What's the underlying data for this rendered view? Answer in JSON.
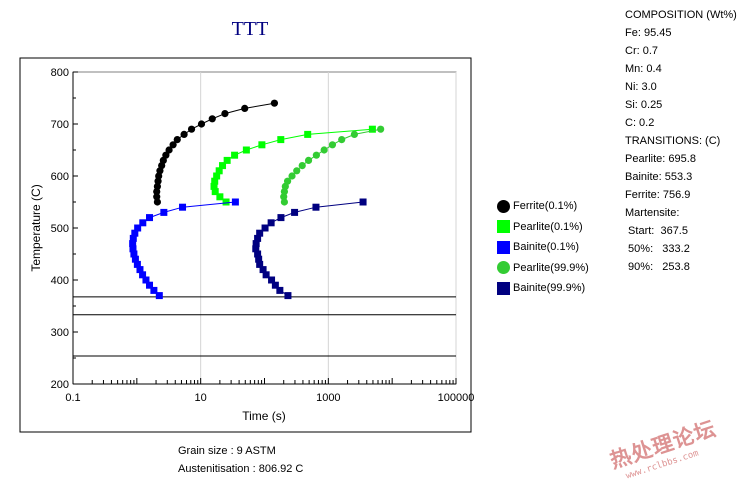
{
  "title": "TTT",
  "composition": {
    "header": "COMPOSITION (Wt%)",
    "items": [
      "Fe: 95.45",
      "Cr: 0.7",
      "Mn: 0.4",
      "Ni: 3.0",
      "Si: 0.25",
      "C: 0.2"
    ]
  },
  "transitions": {
    "header": "TRANSITIONS: (C)",
    "items": [
      "Pearlite: 695.8",
      "Bainite: 553.3",
      "Ferrite: 756.9"
    ],
    "martensite_header": "Martensite:",
    "martensite_items": [
      " Start:  367.5",
      " 50%:   333.2",
      " 90%:   253.8"
    ]
  },
  "grain_size": "Grain size : 9 ASTM",
  "austenitisation": "Austenitisation : 806.92 C",
  "watermark": {
    "cn": "热处理论坛",
    "url": "www.rclbbs.com"
  },
  "chart_data": {
    "type": "line",
    "xlabel": "Time (s)",
    "ylabel": "Temperature (C)",
    "x_scale": "log",
    "xlim": [
      0.1,
      100000
    ],
    "ylim": [
      200,
      800
    ],
    "x_ticks": [
      "0.1",
      "10",
      "1000",
      "100000"
    ],
    "y_ticks": [
      "200",
      "300",
      "400",
      "500",
      "600",
      "700",
      "800"
    ],
    "grid": true,
    "legend_position": "right",
    "martensite_lines": [
      367.5,
      333.2,
      253.8
    ],
    "series": [
      {
        "name": "Ferrite(0.1%)",
        "color": "#000000",
        "marker": "circle",
        "points": [
          [
            2.1,
            550
          ],
          [
            2.05,
            560
          ],
          [
            2.05,
            570
          ],
          [
            2.1,
            580
          ],
          [
            2.15,
            590
          ],
          [
            2.2,
            600
          ],
          [
            2.3,
            610
          ],
          [
            2.45,
            620
          ],
          [
            2.6,
            630
          ],
          [
            2.85,
            640
          ],
          [
            3.2,
            650
          ],
          [
            3.7,
            660
          ],
          [
            4.3,
            670
          ],
          [
            5.5,
            680
          ],
          [
            7.2,
            690
          ],
          [
            10.3,
            700
          ],
          [
            15.2,
            710
          ],
          [
            24,
            720
          ],
          [
            49,
            730
          ],
          [
            143,
            740
          ]
        ]
      },
      {
        "name": "Pearlite(0.1%)",
        "color": "#00ff00",
        "marker": "square",
        "points": [
          [
            25,
            550
          ],
          [
            20,
            560
          ],
          [
            16.9,
            570
          ],
          [
            16.2,
            580
          ],
          [
            16.6,
            590
          ],
          [
            17.8,
            600
          ],
          [
            19.5,
            610
          ],
          [
            22,
            620
          ],
          [
            26,
            630
          ],
          [
            34,
            640
          ],
          [
            52,
            650
          ],
          [
            91,
            660
          ],
          [
            180,
            670
          ],
          [
            475,
            680
          ],
          [
            4900,
            690
          ]
        ]
      },
      {
        "name": "Bainite(0.1%)",
        "color": "#0000ff",
        "marker": "square",
        "points": [
          [
            35,
            550
          ],
          [
            5.2,
            540
          ],
          [
            2.65,
            530
          ],
          [
            1.58,
            520
          ],
          [
            1.24,
            510
          ],
          [
            1.03,
            500
          ],
          [
            0.93,
            490
          ],
          [
            0.88,
            480
          ],
          [
            0.86,
            470
          ],
          [
            0.87,
            460
          ],
          [
            0.9,
            450
          ],
          [
            0.95,
            440
          ],
          [
            1.02,
            430
          ],
          [
            1.12,
            420
          ],
          [
            1.23,
            410
          ],
          [
            1.39,
            400
          ],
          [
            1.58,
            390
          ],
          [
            1.85,
            380
          ],
          [
            2.25,
            370
          ]
        ]
      },
      {
        "name": "Pearlite(99.9%)",
        "color": "#33cc33",
        "marker": "circle",
        "points": [
          [
            205,
            550
          ],
          [
            200,
            560
          ],
          [
            205,
            570
          ],
          [
            212,
            580
          ],
          [
            230,
            590
          ],
          [
            270,
            600
          ],
          [
            320,
            610
          ],
          [
            390,
            620
          ],
          [
            490,
            630
          ],
          [
            650,
            640
          ],
          [
            860,
            650
          ],
          [
            1160,
            660
          ],
          [
            1620,
            670
          ],
          [
            2560,
            680
          ],
          [
            6600,
            690
          ]
        ]
      },
      {
        "name": "Bainite(99.9%)",
        "color": "#000080",
        "marker": "square",
        "points": [
          [
            3500,
            550
          ],
          [
            640,
            540
          ],
          [
            296,
            530
          ],
          [
            181,
            520
          ],
          [
            127,
            510
          ],
          [
            102,
            500
          ],
          [
            84,
            490
          ],
          [
            78,
            480
          ],
          [
            74,
            470
          ],
          [
            73,
            460
          ],
          [
            78,
            450
          ],
          [
            81,
            440
          ],
          [
            84,
            430
          ],
          [
            95,
            420
          ],
          [
            106,
            410
          ],
          [
            129,
            400
          ],
          [
            148,
            390
          ],
          [
            174,
            380
          ],
          [
            233,
            370
          ]
        ]
      }
    ]
  }
}
